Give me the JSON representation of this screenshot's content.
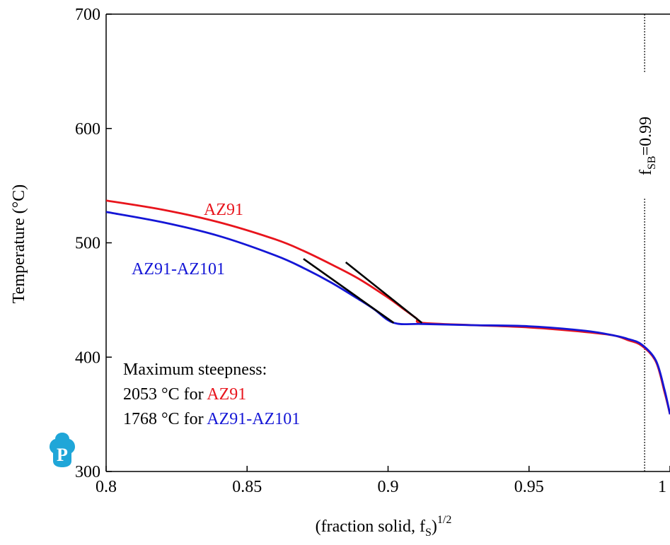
{
  "chart_data": {
    "type": "line",
    "xlabel": {
      "main": "(fraction solid, f",
      "sub": "S",
      "close": ")",
      "sup": "1/2"
    },
    "ylabel": "Temperature (°C)",
    "xlim": [
      0.8,
      1.0
    ],
    "ylim": [
      300,
      700
    ],
    "xticks": [
      0.8,
      0.85,
      0.9,
      0.95,
      1.0
    ],
    "xtick_labels": [
      "0.8",
      "0.85",
      "0.9",
      "0.95",
      "1"
    ],
    "yticks": [
      300,
      400,
      500,
      600,
      700
    ],
    "ytick_labels": [
      "300",
      "400",
      "500",
      "600",
      "700"
    ],
    "grid": false,
    "series": [
      {
        "name": "AZ91",
        "color": "#e8141c",
        "x": [
          0.8,
          0.82,
          0.84,
          0.86,
          0.87,
          0.88,
          0.89,
          0.9,
          0.905,
          0.91,
          0.912,
          0.93,
          0.95,
          0.97,
          0.98,
          0.985,
          0.99,
          0.995,
          0.998,
          1.0
        ],
        "y": [
          537,
          529,
          518,
          503,
          493,
          481,
          468,
          452,
          443,
          434,
          430,
          428,
          426,
          422,
          419,
          415,
          410,
          396,
          370,
          350
        ]
      },
      {
        "name": "AZ91-AZ101",
        "color": "#1416d6",
        "x": [
          0.8,
          0.82,
          0.84,
          0.86,
          0.87,
          0.88,
          0.89,
          0.895,
          0.902,
          0.912,
          0.93,
          0.95,
          0.97,
          0.98,
          0.985,
          0.99,
          0.995,
          0.998,
          1.0
        ],
        "y": [
          527,
          518,
          506,
          489,
          478,
          465,
          450,
          442,
          430,
          429,
          428,
          427,
          423,
          419,
          416,
          411,
          397,
          372,
          350
        ]
      }
    ],
    "tangent_lines": [
      {
        "x": [
          0.885,
          0.912
        ],
        "y": [
          483,
          430
        ],
        "color": "#000000"
      },
      {
        "x": [
          0.87,
          0.902
        ],
        "y": [
          486,
          430
        ],
        "color": "#000000"
      }
    ],
    "reference_line": {
      "x": 0.991,
      "style": "dotted",
      "label": {
        "main": "f",
        "sub": "SB",
        "rest": "=0.99"
      }
    },
    "annotations": {
      "series_label_1": "AZ91",
      "series_label_2": "AZ91-AZ101",
      "steepness_title": "Maximum steepness:",
      "line1_prefix": "2053 °C for ",
      "line1_name": "AZ91",
      "line2_prefix": "1768 °C for ",
      "line2_name": "AZ91-AZ101"
    },
    "logo_icon": "pandat-p-logo-icon"
  }
}
